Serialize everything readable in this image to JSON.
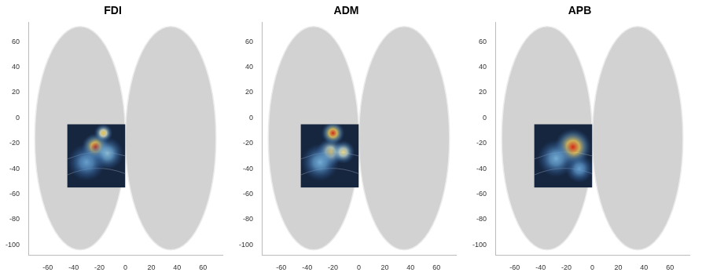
{
  "chart_data": [
    {
      "type": "heatmap",
      "title": "FDI",
      "xlim": [
        -75,
        75
      ],
      "ylim": [
        -108,
        75
      ],
      "xticks": [
        -60,
        -40,
        -20,
        0,
        20,
        40,
        60
      ],
      "yticks": [
        -100,
        -80,
        -60,
        -40,
        -20,
        0,
        20,
        40,
        60
      ],
      "grid": false,
      "inset": {
        "xlim": [
          -45,
          0
        ],
        "ylim": [
          -55,
          -5
        ]
      },
      "hotspots": [
        {
          "x": -23,
          "y": -23,
          "radius": 6,
          "intensity": 1.0
        },
        {
          "x": -17,
          "y": -12,
          "radius": 4,
          "intensity": 0.75
        },
        {
          "x": -14,
          "y": -28,
          "radius": 7,
          "intensity": 0.35
        },
        {
          "x": -30,
          "y": -35,
          "radius": 8,
          "intensity": 0.25
        }
      ]
    },
    {
      "type": "heatmap",
      "title": "ADM",
      "xlim": [
        -75,
        75
      ],
      "ylim": [
        -108,
        75
      ],
      "xticks": [
        -60,
        -40,
        -20,
        0,
        20,
        40,
        60
      ],
      "yticks": [
        -100,
        -80,
        -60,
        -40,
        -20,
        0,
        20,
        40,
        60
      ],
      "grid": false,
      "inset": {
        "xlim": [
          -45,
          0
        ],
        "ylim": [
          -55,
          -5
        ]
      },
      "hotspots": [
        {
          "x": -20,
          "y": -12,
          "radius": 5,
          "intensity": 1.0
        },
        {
          "x": -22,
          "y": -27,
          "radius": 6,
          "intensity": 0.7
        },
        {
          "x": -12,
          "y": -27,
          "radius": 5,
          "intensity": 0.65
        },
        {
          "x": -30,
          "y": -35,
          "radius": 8,
          "intensity": 0.3
        }
      ]
    },
    {
      "type": "heatmap",
      "title": "APB",
      "xlim": [
        -75,
        75
      ],
      "ylim": [
        -108,
        75
      ],
      "xticks": [
        -60,
        -40,
        -20,
        0,
        20,
        40,
        60
      ],
      "yticks": [
        -100,
        -80,
        -60,
        -40,
        -20,
        0,
        20,
        40,
        60
      ],
      "grid": false,
      "inset": {
        "xlim": [
          -45,
          0
        ],
        "ylim": [
          -55,
          -5
        ]
      },
      "hotspots": [
        {
          "x": -15,
          "y": -23,
          "radius": 8,
          "intensity": 1.0
        },
        {
          "x": -28,
          "y": -32,
          "radius": 8,
          "intensity": 0.3
        },
        {
          "x": -10,
          "y": -40,
          "radius": 6,
          "intensity": 0.25
        }
      ]
    }
  ]
}
